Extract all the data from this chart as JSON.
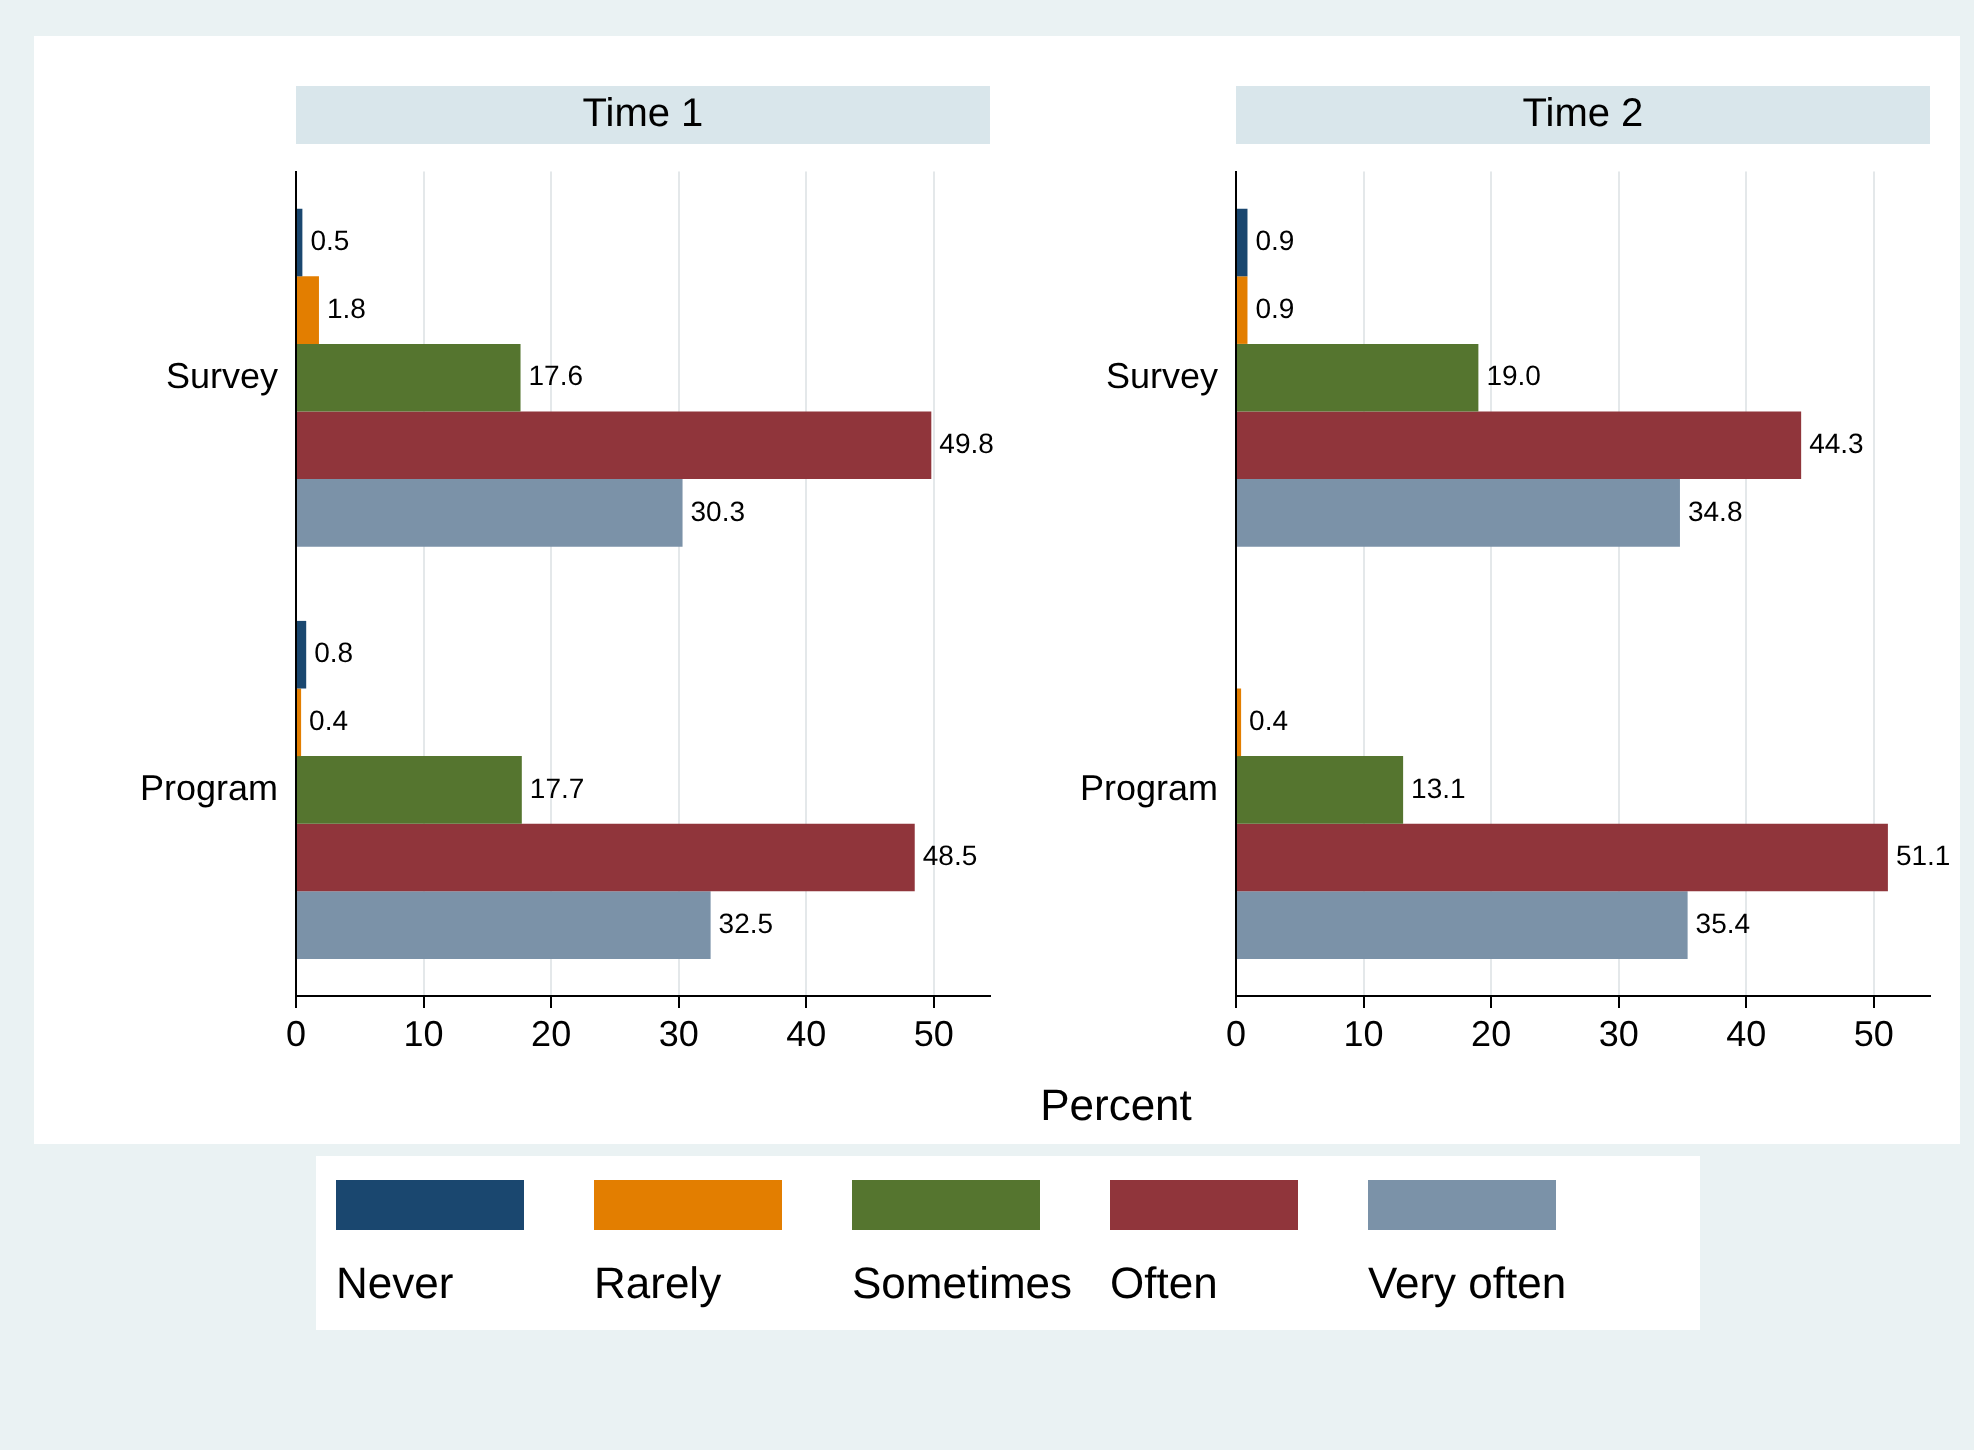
{
  "chart_data": [
    {
      "type": "bar",
      "orientation": "horizontal",
      "title": "Time 1",
      "xlabel": "Percent",
      "categories": [
        "Survey",
        "Program"
      ],
      "series": [
        {
          "name": "Never",
          "color": "#1a476f",
          "values": [
            0.5,
            0.8
          ],
          "value_labels": [
            "0.5",
            "0.8"
          ]
        },
        {
          "name": "Rarely",
          "color": "#e37e00",
          "values": [
            1.8,
            0.4
          ],
          "value_labels": [
            "1.8",
            "0.4"
          ]
        },
        {
          "name": "Sometimes",
          "color": "#55752f",
          "values": [
            17.6,
            17.7
          ],
          "value_labels": [
            "17.6",
            "17.7"
          ]
        },
        {
          "name": "Often",
          "color": "#90353b",
          "values": [
            49.8,
            48.5
          ],
          "value_labels": [
            "49.8",
            "48.5"
          ]
        },
        {
          "name": "Very often",
          "color": "#7b92a8",
          "values": [
            30.3,
            32.5
          ],
          "value_labels": [
            "30.3",
            "32.5"
          ]
        }
      ],
      "xlim": [
        0,
        54.4
      ],
      "xticks": [
        0,
        10,
        20,
        30,
        40,
        50
      ],
      "grid": "x",
      "legend": "bottom"
    },
    {
      "type": "bar",
      "orientation": "horizontal",
      "title": "Time 2",
      "categories": [
        "Survey",
        "Program"
      ],
      "series": [
        {
          "color": "#1a476f",
          "values": [
            0.9,
            null
          ],
          "value_labels": [
            "0.9",
            null
          ]
        },
        {
          "color": "#e37e00",
          "values": [
            0.9,
            0.4
          ],
          "value_labels": [
            "0.9",
            "0.4"
          ]
        },
        {
          "color": "#55752f",
          "values": [
            19,
            13.1
          ],
          "value_labels": [
            "19.0",
            "13.1"
          ]
        },
        {
          "color": "#90353b",
          "values": [
            44.3,
            51.1
          ],
          "value_labels": [
            "44.3",
            "51.1"
          ]
        },
        {
          "color": "#7b92a8",
          "values": [
            34.8,
            35.4
          ],
          "value_labels": [
            "34.8",
            "35.4"
          ]
        }
      ],
      "xlim": [
        0,
        54.4
      ],
      "xticks": [
        0,
        10,
        20,
        30,
        40,
        50
      ],
      "grid": "x"
    }
  ]
}
